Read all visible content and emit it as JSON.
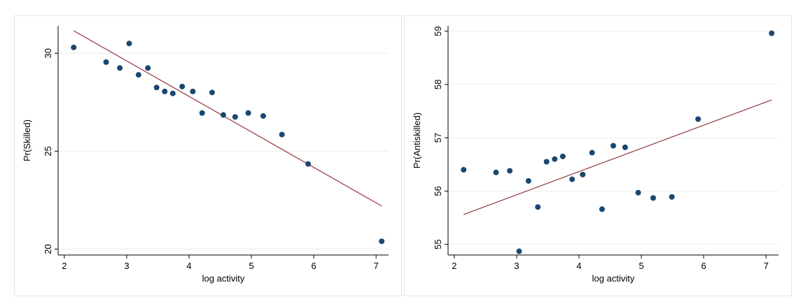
{
  "chart_data": [
    {
      "type": "scatter",
      "xlabel": "log activity",
      "ylabel": "Pr(Skilled)",
      "xlim": [
        1.9,
        7.2
      ],
      "ylim": [
        19.7,
        31.4
      ],
      "xticks": [
        2,
        3,
        4,
        5,
        6,
        7
      ],
      "yticks": [
        20,
        25,
        30
      ],
      "grid": true,
      "points": [
        {
          "x": 2.15,
          "y": 30.3
        },
        {
          "x": 2.67,
          "y": 29.55
        },
        {
          "x": 2.89,
          "y": 29.25
        },
        {
          "x": 3.04,
          "y": 30.5
        },
        {
          "x": 3.19,
          "y": 28.9
        },
        {
          "x": 3.34,
          "y": 29.25
        },
        {
          "x": 3.48,
          "y": 28.25
        },
        {
          "x": 3.61,
          "y": 28.05
        },
        {
          "x": 3.74,
          "y": 27.95
        },
        {
          "x": 3.89,
          "y": 28.3
        },
        {
          "x": 4.06,
          "y": 28.05
        },
        {
          "x": 4.21,
          "y": 26.95
        },
        {
          "x": 4.37,
          "y": 28.0
        },
        {
          "x": 4.55,
          "y": 26.85
        },
        {
          "x": 4.74,
          "y": 26.75
        },
        {
          "x": 4.95,
          "y": 26.95
        },
        {
          "x": 5.19,
          "y": 26.8
        },
        {
          "x": 5.49,
          "y": 25.85
        },
        {
          "x": 5.91,
          "y": 24.35
        },
        {
          "x": 7.09,
          "y": 20.4
        }
      ],
      "fit_line": {
        "x": [
          2.15,
          7.09
        ],
        "y": [
          31.15,
          22.2
        ]
      },
      "colors": {
        "points": "#1a476f",
        "line": "#90353b"
      }
    },
    {
      "type": "scatter",
      "xlabel": "log activity",
      "ylabel": "Pr(Antiskilled)",
      "xlim": [
        1.9,
        7.2
      ],
      "ylim": [
        54.8,
        59.1
      ],
      "xticks": [
        2,
        3,
        4,
        5,
        6,
        7
      ],
      "yticks": [
        55,
        56,
        57,
        58,
        59
      ],
      "grid": true,
      "points": [
        {
          "x": 2.15,
          "y": 56.4
        },
        {
          "x": 2.67,
          "y": 56.35
        },
        {
          "x": 2.89,
          "y": 56.38
        },
        {
          "x": 3.04,
          "y": 54.87
        },
        {
          "x": 3.19,
          "y": 56.19
        },
        {
          "x": 3.34,
          "y": 55.7
        },
        {
          "x": 3.48,
          "y": 56.55
        },
        {
          "x": 3.61,
          "y": 56.6
        },
        {
          "x": 3.74,
          "y": 56.65
        },
        {
          "x": 3.89,
          "y": 56.22
        },
        {
          "x": 4.06,
          "y": 56.31
        },
        {
          "x": 4.21,
          "y": 56.72
        },
        {
          "x": 4.37,
          "y": 55.66
        },
        {
          "x": 4.55,
          "y": 56.85
        },
        {
          "x": 4.74,
          "y": 56.82
        },
        {
          "x": 4.95,
          "y": 55.97
        },
        {
          "x": 5.19,
          "y": 55.87
        },
        {
          "x": 5.49,
          "y": 55.89
        },
        {
          "x": 5.91,
          "y": 57.35
        },
        {
          "x": 7.09,
          "y": 58.96
        }
      ],
      "fit_line": {
        "x": [
          2.15,
          7.09
        ],
        "y": [
          55.56,
          57.71
        ]
      },
      "colors": {
        "points": "#1a476f",
        "line": "#90353b"
      }
    }
  ]
}
